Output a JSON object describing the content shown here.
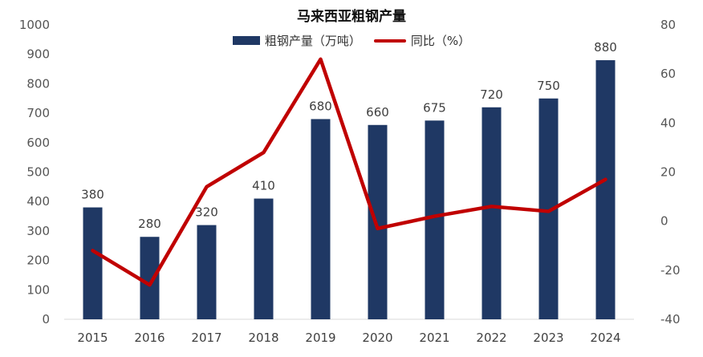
{
  "chart_data": {
    "type": "bar",
    "title": "马来西亚粗钢产量",
    "categories": [
      "2015",
      "2016",
      "2017",
      "2018",
      "2019",
      "2020",
      "2021",
      "2022",
      "2023",
      "2024"
    ],
    "series": [
      {
        "name": "粗钢产量（万吨）",
        "type": "bar",
        "axis": "left",
        "color": "#1f3864",
        "values": [
          380,
          280,
          320,
          410,
          680,
          660,
          675,
          720,
          750,
          880
        ]
      },
      {
        "name": "同比（%）",
        "type": "line",
        "axis": "right",
        "color": "#c00000",
        "values": [
          -12,
          -26,
          14,
          28,
          66,
          -3,
          2,
          6,
          4,
          17
        ]
      }
    ],
    "y_left": {
      "min": 0,
      "max": 1000,
      "ticks": [
        0,
        100,
        200,
        300,
        400,
        500,
        600,
        700,
        800,
        900,
        1000
      ]
    },
    "y_right": {
      "min": -40,
      "max": 80,
      "ticks": [
        -40,
        -20,
        0,
        20,
        40,
        60,
        80
      ]
    },
    "data_labels": [
      "380",
      "280",
      "320",
      "410",
      "680",
      "660",
      "675",
      "720",
      "750",
      "880"
    ],
    "grid": false,
    "legend_position": "top"
  }
}
